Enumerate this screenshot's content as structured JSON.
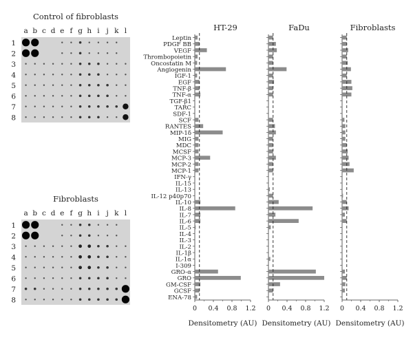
{
  "blots": [
    {
      "title": "Control of fibroblasts",
      "cols": [
        "a",
        "b",
        "c",
        "d",
        "e",
        "f",
        "g",
        "h",
        "i",
        "j",
        "k",
        "l"
      ],
      "rows": [
        "1",
        "2",
        "3",
        "4",
        "5",
        "6",
        "7",
        "8"
      ]
    },
    {
      "title": "Fibroblasts",
      "cols": [
        "a",
        "b",
        "c",
        "d",
        "e",
        "f",
        "g",
        "h",
        "i",
        "j",
        "k",
        "l"
      ],
      "rows": [
        "1",
        "2",
        "3",
        "4",
        "5",
        "6",
        "7",
        "8"
      ]
    }
  ],
  "chart_data": {
    "type": "bar",
    "orientation": "horizontal",
    "categories": [
      "Leptin",
      "PDGF BB",
      "VEGF",
      "Thrombopoietin",
      "Oncostatin M",
      "Angiogenin",
      "IGF-1",
      "EGF",
      "TNF-β",
      "TNF-α",
      "TGF-β1",
      "TARC",
      "SDF-1",
      "SCF",
      "RANTES",
      "MIP-1δ",
      "MIG",
      "MDC",
      "MCSF",
      "MCP-3",
      "MCP-2",
      "MCP-1",
      "IFN-γ",
      "IL-15",
      "IL-13",
      "IL-12 p40p70",
      "IL-10",
      "IL-8",
      "IL-7",
      "IL-6",
      "IL-5",
      "IL-4",
      "IL-3",
      "IL-2",
      "IL-1β",
      "IL-1α",
      "I-309",
      "GRO-α",
      "GRO",
      "GM-CSF",
      "GCSF",
      "ENA-78"
    ],
    "xlabel": "Densitometry (AU)",
    "xlim": [
      0,
      1.2
    ],
    "xticks": [
      "0",
      "0.4",
      "0.8",
      "1.2"
    ],
    "reference_line": 0.1,
    "panels": [
      {
        "name": "HT-29",
        "values": [
          0.06,
          0.1,
          0.26,
          0.06,
          0.05,
          0.67,
          0.05,
          0.1,
          0.1,
          0.12,
          0.01,
          0.01,
          0.01,
          0.08,
          0.18,
          0.6,
          0.08,
          0.08,
          0.08,
          0.33,
          0.08,
          0.08,
          0.01,
          0.01,
          0.01,
          0.01,
          0.12,
          0.87,
          0.12,
          0.12,
          0.02,
          0.01,
          0.01,
          0.01,
          0.01,
          0.01,
          0.01,
          0.5,
          0.99,
          0.12,
          0.1,
          0.05
        ]
      },
      {
        "name": "FaDu",
        "values": [
          0.1,
          0.16,
          0.18,
          0.1,
          0.1,
          0.39,
          0.1,
          0.12,
          0.1,
          0.1,
          0.01,
          0.01,
          0.01,
          0.1,
          0.14,
          0.16,
          0.1,
          0.1,
          0.1,
          0.16,
          0.1,
          0.1,
          0.01,
          0.01,
          0.03,
          0.1,
          0.22,
          0.95,
          0.15,
          0.65,
          0.05,
          0.01,
          0.01,
          0.01,
          0.01,
          0.04,
          0.01,
          1.02,
          1.2,
          0.25,
          0.1,
          0.01
        ]
      },
      {
        "name": "Fibroblasts",
        "values": [
          0.1,
          0.1,
          0.13,
          0.1,
          0.12,
          0.19,
          0.1,
          0.2,
          0.22,
          0.2,
          0.01,
          0.01,
          0.01,
          0.05,
          0.07,
          0.07,
          0.07,
          0.1,
          0.12,
          0.14,
          0.16,
          0.25,
          0.01,
          0.01,
          0.01,
          0.02,
          0.1,
          0.14,
          0.06,
          0.1,
          0.01,
          0.01,
          0.01,
          0.01,
          0.01,
          0.01,
          0.01,
          0.06,
          0.1,
          0.07,
          0.06,
          0.01
        ]
      }
    ]
  }
}
